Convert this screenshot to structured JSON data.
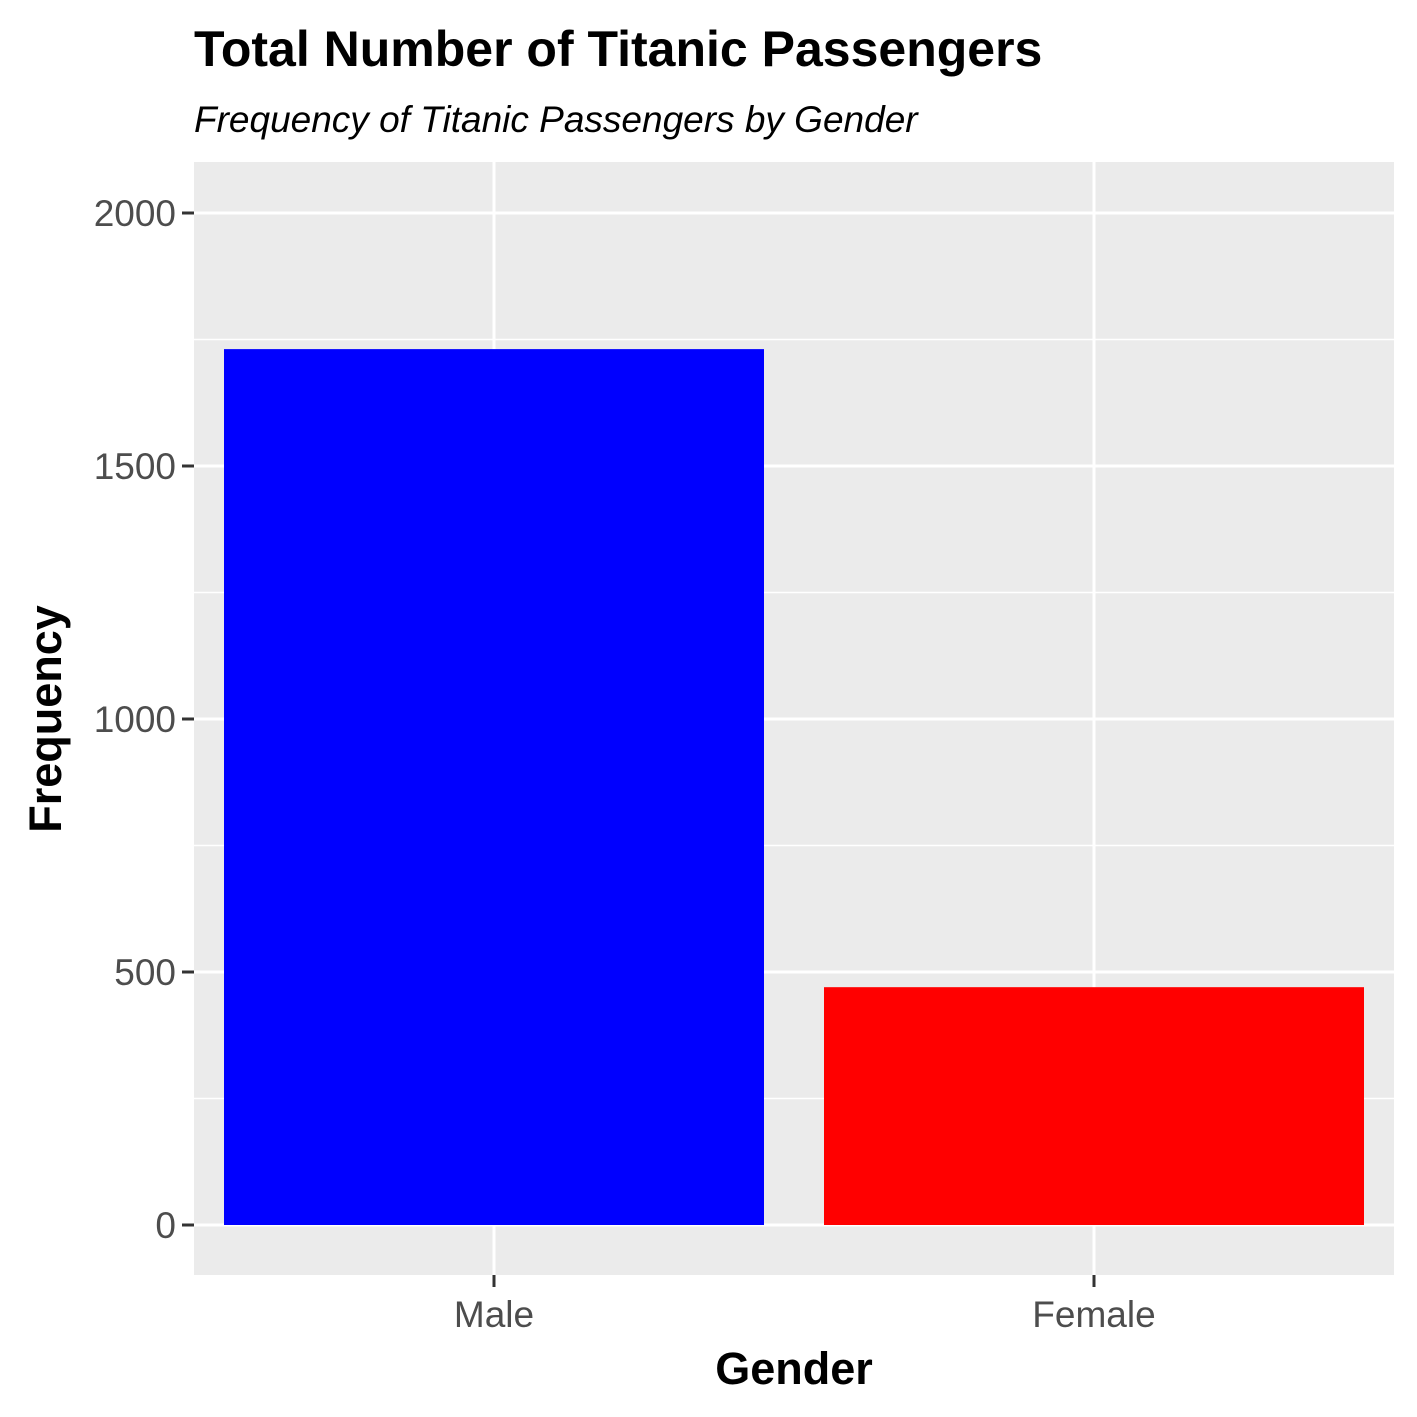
{
  "chart_data": {
    "type": "bar",
    "title": "Total Number of Titanic Passengers",
    "subtitle": "Frequency of Titanic Passengers by Gender",
    "xlabel": "Gender",
    "ylabel": "Frequency",
    "categories": [
      "Male",
      "Female"
    ],
    "values": [
      1731,
      470
    ],
    "bar_colors": [
      "#0000ff",
      "#ff0000"
    ],
    "ylim": [
      -200,
      2100
    ],
    "yticks": [
      0,
      500,
      1000,
      1500,
      2000
    ],
    "ytick_labels": [
      "0",
      "500",
      "1000",
      "1500",
      "2000"
    ],
    "grid": true,
    "panel_background": "#ebebeb",
    "gridline_color": "#ffffff",
    "legend": "none"
  }
}
